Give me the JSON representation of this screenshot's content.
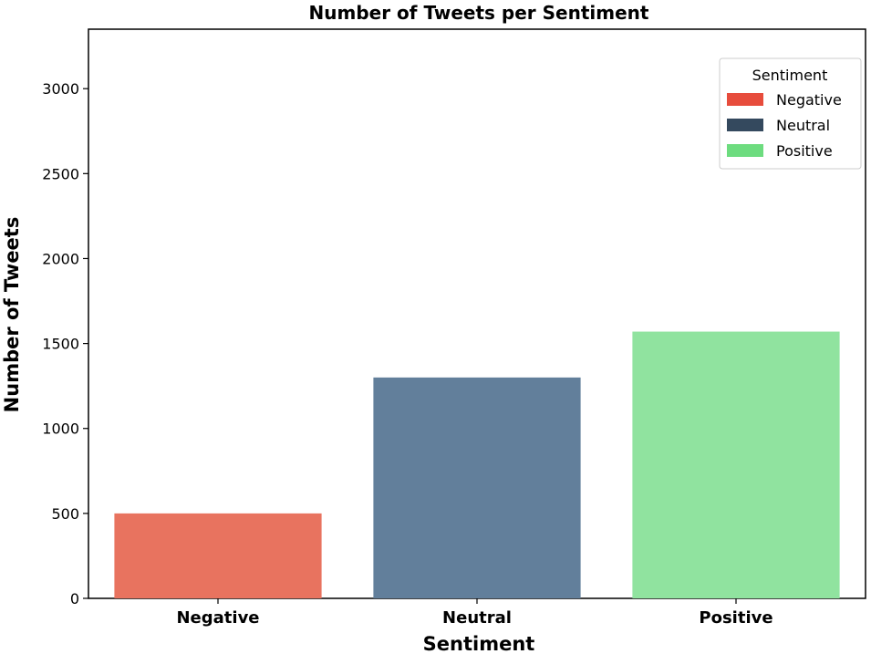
{
  "chart_data": {
    "type": "bar",
    "title": "Number of Tweets per Sentiment",
    "xlabel": "Sentiment",
    "ylabel": "Number of Tweets",
    "categories": [
      "Negative",
      "Neutral",
      "Positive"
    ],
    "values": [
      500,
      1300,
      1570
    ],
    "colors": [
      "#e8735f",
      "#627f9b",
      "#90e39f"
    ],
    "ylim": [
      0,
      3350
    ],
    "yticks": [
      0,
      500,
      1000,
      1500,
      2000,
      2500,
      3000
    ],
    "grid": false,
    "legend": {
      "title": "Sentiment",
      "placement": "top-right",
      "entries": [
        {
          "label": "Negative",
          "color": "#e74c3c"
        },
        {
          "label": "Neutral",
          "color": "#34495e"
        },
        {
          "label": "Positive",
          "color": "#6ddc7f"
        }
      ]
    }
  }
}
